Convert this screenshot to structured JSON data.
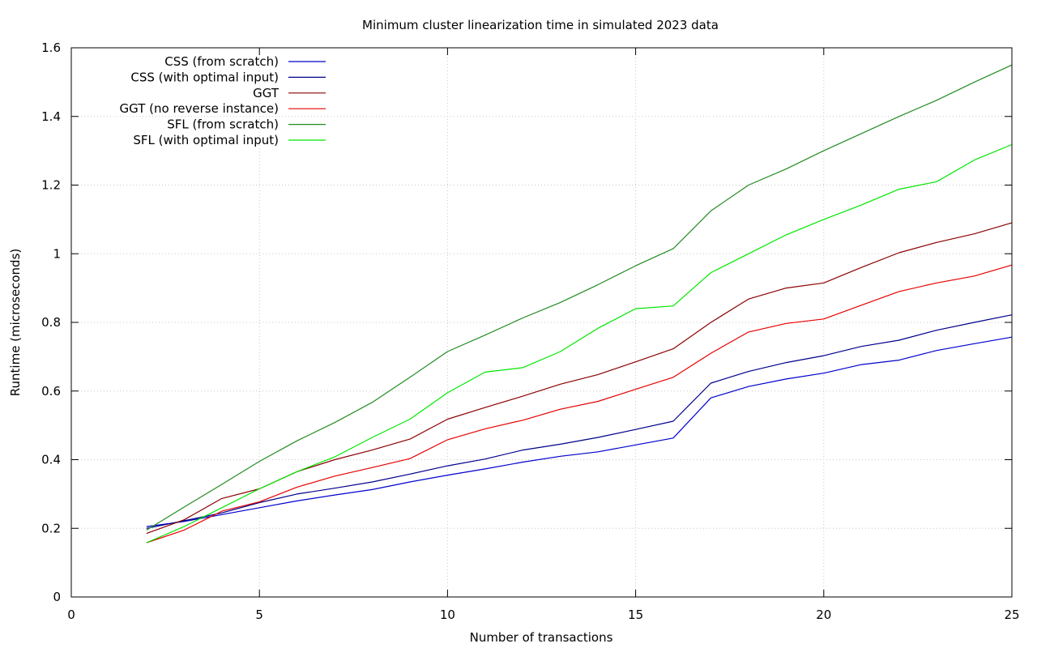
{
  "chart_data": {
    "type": "line",
    "title": "Minimum cluster linearization time in simulated 2023 data",
    "xlabel": "Number of transactions",
    "ylabel": "Runtime (microseconds)",
    "xlim": [
      0,
      25
    ],
    "ylim": [
      0,
      1.6
    ],
    "xticks": [
      0,
      5,
      10,
      15,
      20,
      25
    ],
    "yticks": [
      0,
      0.2,
      0.4,
      0.6,
      0.8,
      1,
      1.2,
      1.4,
      1.6
    ],
    "xtick_labels": [
      "0",
      "5",
      "10",
      "15",
      "20",
      "25"
    ],
    "ytick_labels": [
      "0",
      "0.2",
      "0.4",
      "0.6",
      "0.8",
      "1",
      "1.2",
      "1.4",
      "1.6"
    ],
    "grid": true,
    "legend_position": "top-left",
    "x": [
      2,
      3,
      4,
      5,
      6,
      7,
      8,
      9,
      10,
      11,
      12,
      13,
      14,
      15,
      16,
      17,
      18,
      19,
      20,
      21,
      22,
      23,
      24,
      25
    ],
    "series": [
      {
        "name": "CSS (from scratch)",
        "color": "#0000cd",
        "values": [
          0.205,
          0.22,
          0.24,
          0.26,
          0.28,
          0.297,
          0.313,
          0.335,
          0.355,
          0.373,
          0.393,
          0.41,
          0.423,
          0.443,
          0.463,
          0.58,
          0.613,
          0.635,
          0.652,
          0.677,
          0.69,
          0.718,
          0.738,
          0.757
        ]
      },
      {
        "name": "CSS (with optimal input)",
        "color": "#00008b",
        "values": [
          0.2,
          0.222,
          0.245,
          0.275,
          0.3,
          0.317,
          0.335,
          0.358,
          0.382,
          0.402,
          0.428,
          0.445,
          0.465,
          0.488,
          0.512,
          0.623,
          0.657,
          0.683,
          0.703,
          0.73,
          0.748,
          0.777,
          0.8,
          0.822
        ]
      },
      {
        "name": "GGT",
        "color": "#8b0000",
        "values": [
          0.185,
          0.225,
          0.287,
          0.315,
          0.365,
          0.4,
          0.428,
          0.46,
          0.518,
          0.552,
          0.585,
          0.62,
          0.648,
          0.685,
          0.723,
          0.8,
          0.868,
          0.9,
          0.915,
          0.96,
          1.003,
          1.033,
          1.058,
          1.09
        ]
      },
      {
        "name": "GGT (no reverse instance)",
        "color": "#e60000",
        "values": [
          0.158,
          0.195,
          0.25,
          0.277,
          0.32,
          0.352,
          0.377,
          0.403,
          0.458,
          0.49,
          0.515,
          0.547,
          0.57,
          0.605,
          0.64,
          0.71,
          0.772,
          0.797,
          0.81,
          0.85,
          0.89,
          0.915,
          0.935,
          0.967
        ]
      },
      {
        "name": "SFL (from scratch)",
        "color": "#228b22",
        "values": [
          0.195,
          0.262,
          0.328,
          0.395,
          0.455,
          0.508,
          0.567,
          0.64,
          0.715,
          0.763,
          0.813,
          0.858,
          0.91,
          0.965,
          1.015,
          1.125,
          1.2,
          1.247,
          1.3,
          1.35,
          1.4,
          1.447,
          1.5,
          1.55
        ]
      },
      {
        "name": "SFL (with optimal input)",
        "color": "#00e600",
        "values": [
          0.158,
          0.205,
          0.26,
          0.315,
          0.365,
          0.408,
          0.465,
          0.518,
          0.595,
          0.655,
          0.668,
          0.715,
          0.783,
          0.84,
          0.848,
          0.945,
          1.0,
          1.055,
          1.1,
          1.142,
          1.188,
          1.21,
          1.273,
          1.318
        ]
      }
    ]
  }
}
